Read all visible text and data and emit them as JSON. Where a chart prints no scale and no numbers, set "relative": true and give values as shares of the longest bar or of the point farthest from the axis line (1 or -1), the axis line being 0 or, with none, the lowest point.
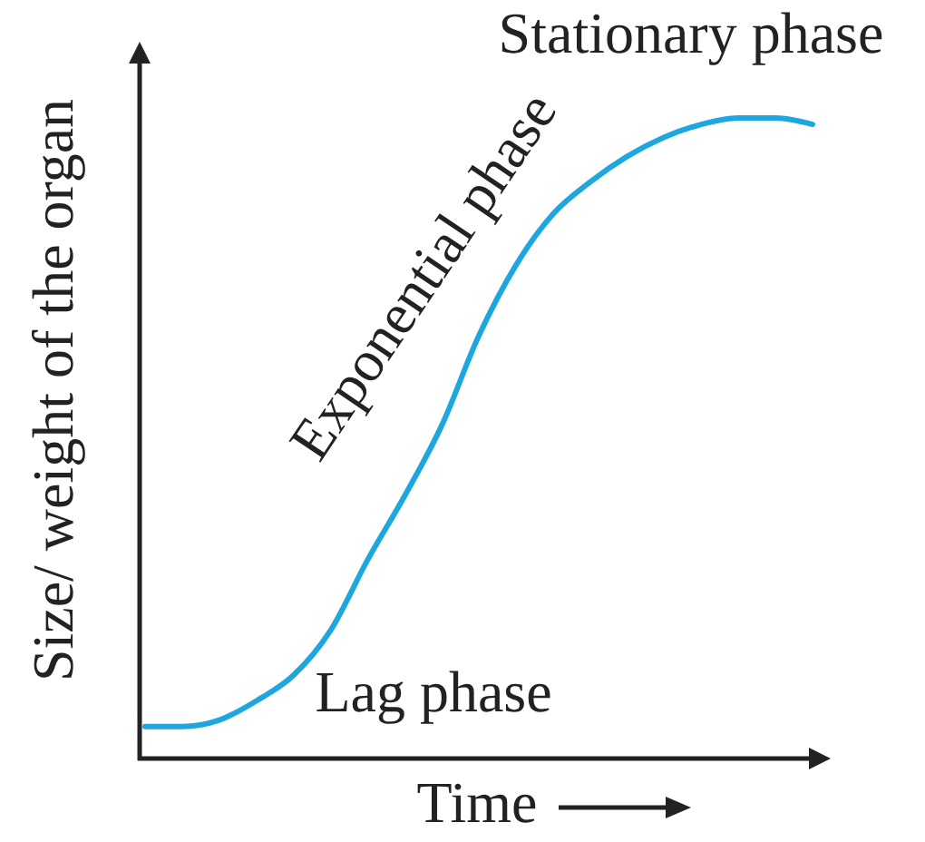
{
  "chart_data": {
    "type": "line",
    "relative": true,
    "xlabel": "Time",
    "ylabel": "Size/ weight of the organ",
    "categories": [
      null,
      null,
      null,
      null,
      null,
      null,
      null,
      null,
      null,
      null,
      null,
      null,
      null,
      null,
      null,
      null,
      null,
      null,
      null
    ],
    "series": [
      {
        "color": "#1ea6df",
        "values": [
          0.05,
          0.05,
          0.06,
          0.09,
          0.13,
          0.2,
          0.31,
          0.41,
          0.52,
          0.66,
          0.77,
          0.85,
          0.9,
          0.94,
          0.97,
          0.99,
          1,
          1,
          0.99
        ]
      }
    ],
    "annotations": [
      "Stationary phase",
      "Exponential phase",
      "Lag phase"
    ],
    "marker": "none",
    "line_style": "solid"
  }
}
